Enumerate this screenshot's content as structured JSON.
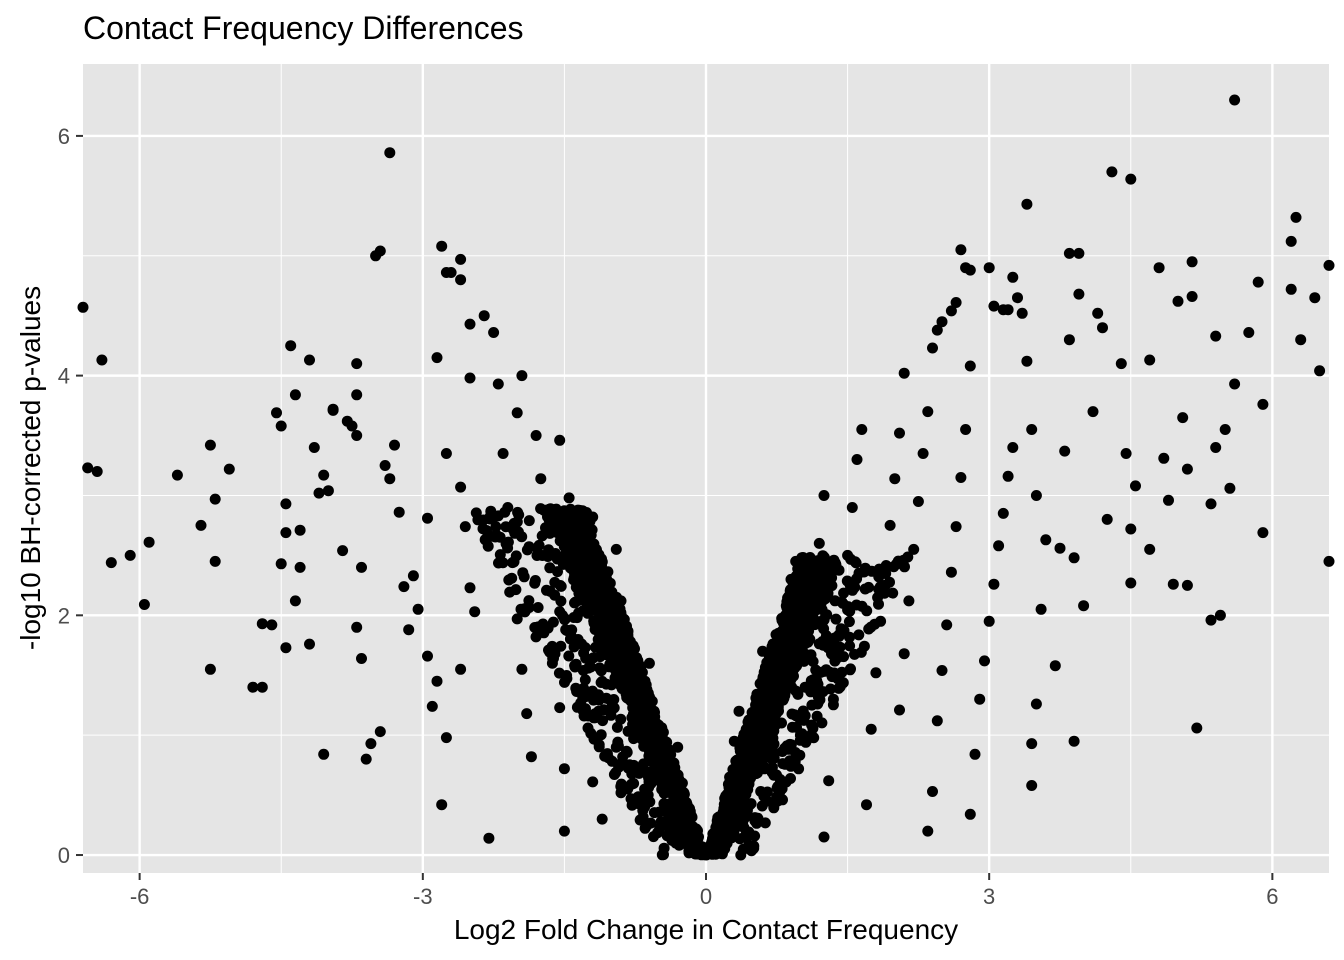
{
  "chart_data": {
    "type": "scatter",
    "title": "Contact Frequency Differences",
    "xlabel": "Log2 Fold Change in Contact Frequency",
    "ylabel": "-log10 BH-corrected p-values",
    "xlim": [
      -6.6,
      6.6
    ],
    "ylim": [
      -0.15,
      6.6
    ],
    "x_ticks": [
      -6,
      -3,
      0,
      3,
      6
    ],
    "y_ticks": [
      0,
      2,
      4,
      6
    ],
    "grid": true,
    "legend": "none",
    "colors": {
      "panel": "#e5e5e5",
      "grid": "#ffffff",
      "point": "#000000",
      "tick_text": "#4d4d4d"
    },
    "points": [
      [
        -6.6,
        4.57
      ],
      [
        -6.4,
        4.13
      ],
      [
        -6.55,
        3.23
      ],
      [
        -6.45,
        3.2
      ],
      [
        -5.6,
        3.17
      ],
      [
        -6.3,
        2.44
      ],
      [
        -6.1,
        2.5
      ],
      [
        -5.9,
        2.61
      ],
      [
        -5.95,
        2.09
      ],
      [
        -5.35,
        2.75
      ],
      [
        -5.25,
        3.42
      ],
      [
        -5.2,
        2.97
      ],
      [
        -5.05,
        3.22
      ],
      [
        -5.2,
        2.45
      ],
      [
        -5.25,
        1.55
      ],
      [
        -4.8,
        1.4
      ],
      [
        -4.7,
        1.4
      ],
      [
        -4.7,
        1.93
      ],
      [
        -4.6,
        1.92
      ],
      [
        -4.55,
        3.69
      ],
      [
        -4.5,
        3.58
      ],
      [
        -4.45,
        2.93
      ],
      [
        -4.45,
        2.69
      ],
      [
        -4.5,
        2.43
      ],
      [
        -4.4,
        4.25
      ],
      [
        -4.35,
        3.84
      ],
      [
        -4.3,
        2.71
      ],
      [
        -4.3,
        2.4
      ],
      [
        -4.35,
        2.12
      ],
      [
        -4.45,
        1.73
      ],
      [
        -4.2,
        4.13
      ],
      [
        -4.15,
        3.4
      ],
      [
        -4.1,
        3.02
      ],
      [
        -4.05,
        3.17
      ],
      [
        -4.0,
        3.04
      ],
      [
        -3.95,
        3.71
      ],
      [
        -3.95,
        3.72
      ],
      [
        -4.2,
        1.76
      ],
      [
        -3.8,
        3.62
      ],
      [
        -3.85,
        2.54
      ],
      [
        -3.7,
        4.1
      ],
      [
        -3.7,
        3.84
      ],
      [
        -3.75,
        3.58
      ],
      [
        -3.7,
        3.5
      ],
      [
        -3.65,
        2.4
      ],
      [
        -3.7,
        1.9
      ],
      [
        -3.65,
        1.64
      ],
      [
        -3.6,
        0.8
      ],
      [
        -4.05,
        0.84
      ],
      [
        -3.55,
        0.93
      ],
      [
        -3.5,
        5.0
      ],
      [
        -3.45,
        5.04
      ],
      [
        -3.35,
        5.86
      ],
      [
        -3.4,
        3.25
      ],
      [
        -3.35,
        3.14
      ],
      [
        -3.3,
        3.42
      ],
      [
        -3.25,
        2.86
      ],
      [
        -3.2,
        2.24
      ],
      [
        -3.15,
        1.88
      ],
      [
        -3.45,
        1.03
      ],
      [
        -3.1,
        2.33
      ],
      [
        -3.05,
        2.05
      ],
      [
        -2.95,
        2.81
      ],
      [
        -2.95,
        1.66
      ],
      [
        -2.9,
        1.24
      ],
      [
        -2.85,
        1.45
      ],
      [
        -2.85,
        4.15
      ],
      [
        -2.8,
        5.08
      ],
      [
        -2.75,
        4.86
      ],
      [
        -2.6,
        4.97
      ],
      [
        -2.6,
        4.8
      ],
      [
        -2.7,
        4.86
      ],
      [
        -2.75,
        3.35
      ],
      [
        -2.6,
        3.07
      ],
      [
        -2.55,
        2.74
      ],
      [
        -2.5,
        2.23
      ],
      [
        -2.45,
        2.03
      ],
      [
        -2.8,
        0.42
      ],
      [
        -2.75,
        0.98
      ],
      [
        -2.6,
        1.55
      ],
      [
        -2.5,
        4.43
      ],
      [
        -2.5,
        3.98
      ],
      [
        -2.35,
        4.5
      ],
      [
        -2.25,
        4.36
      ],
      [
        -2.2,
        3.93
      ],
      [
        -2.3,
        0.14
      ],
      [
        -2.15,
        3.35
      ],
      [
        -2.1,
        2.9
      ],
      [
        -2.05,
        2.44
      ],
      [
        -2.0,
        1.97
      ],
      [
        -1.95,
        1.55
      ],
      [
        -1.9,
        1.18
      ],
      [
        -1.85,
        0.82
      ],
      [
        -2.0,
        3.69
      ],
      [
        -1.95,
        4.0
      ],
      [
        -1.8,
        3.5
      ],
      [
        -1.75,
        3.14
      ],
      [
        -1.7,
        2.73
      ],
      [
        -1.65,
        2.2
      ],
      [
        -1.6,
        1.68
      ],
      [
        -1.55,
        1.23
      ],
      [
        -1.5,
        0.72
      ],
      [
        -1.55,
        3.46
      ],
      [
        -1.45,
        2.98
      ],
      [
        -1.4,
        2.5
      ],
      [
        -1.35,
        2.02
      ],
      [
        -1.3,
        1.54
      ],
      [
        -1.25,
        1.06
      ],
      [
        -1.2,
        0.61
      ],
      [
        -1.5,
        0.2
      ],
      [
        -1.2,
        2.82
      ],
      [
        -1.15,
        2.43
      ],
      [
        -1.1,
        2.05
      ],
      [
        -1.05,
        1.67
      ],
      [
        -1.0,
        1.28
      ],
      [
        -0.95,
        0.9
      ],
      [
        -0.9,
        0.52
      ],
      [
        -1.1,
        0.3
      ],
      [
        -0.95,
        2.55
      ],
      [
        -0.9,
        2.12
      ],
      [
        -0.85,
        1.76
      ],
      [
        -0.8,
        1.4
      ],
      [
        -0.75,
        1.05
      ],
      [
        -0.7,
        0.7
      ],
      [
        -0.65,
        0.4
      ],
      [
        -0.6,
        1.6
      ],
      [
        -0.55,
        1.2
      ],
      [
        -0.5,
        0.85
      ],
      [
        -0.45,
        0.55
      ],
      [
        -0.4,
        0.3
      ],
      [
        -0.3,
        0.9
      ],
      [
        -0.25,
        0.6
      ],
      [
        -0.2,
        0.35
      ],
      [
        -0.15,
        0.2
      ],
      [
        -0.1,
        0.1
      ],
      [
        -0.05,
        0.03
      ],
      [
        0.0,
        0.01
      ],
      [
        0.05,
        0.03
      ],
      [
        0.1,
        0.12
      ],
      [
        0.15,
        0.22
      ],
      [
        0.2,
        0.4
      ],
      [
        0.25,
        0.65
      ],
      [
        0.3,
        0.95
      ],
      [
        0.35,
        1.2
      ],
      [
        0.4,
        0.3
      ],
      [
        0.45,
        0.6
      ],
      [
        0.5,
        0.9
      ],
      [
        0.55,
        1.3
      ],
      [
        0.6,
        1.7
      ],
      [
        0.65,
        0.45
      ],
      [
        0.7,
        0.8
      ],
      [
        0.75,
        1.1
      ],
      [
        0.8,
        1.5
      ],
      [
        0.85,
        1.9
      ],
      [
        0.9,
        2.3
      ],
      [
        0.95,
        2.45
      ],
      [
        1.0,
        1.0
      ],
      [
        1.05,
        1.4
      ],
      [
        1.1,
        1.8
      ],
      [
        1.15,
        2.2
      ],
      [
        1.2,
        2.6
      ],
      [
        1.25,
        3.0
      ],
      [
        1.3,
        0.62
      ],
      [
        1.35,
        1.3
      ],
      [
        1.4,
        1.65
      ],
      [
        1.45,
        2.1
      ],
      [
        1.5,
        2.5
      ],
      [
        1.55,
        2.9
      ],
      [
        1.6,
        3.3
      ],
      [
        1.65,
        3.55
      ],
      [
        1.25,
        0.15
      ],
      [
        1.7,
        0.42
      ],
      [
        1.75,
        1.05
      ],
      [
        1.8,
        1.52
      ],
      [
        1.85,
        1.95
      ],
      [
        1.9,
        2.35
      ],
      [
        1.95,
        2.75
      ],
      [
        2.0,
        3.14
      ],
      [
        2.05,
        3.52
      ],
      [
        2.1,
        4.02
      ],
      [
        2.05,
        1.21
      ],
      [
        2.1,
        1.68
      ],
      [
        2.15,
        2.12
      ],
      [
        2.2,
        2.55
      ],
      [
        2.25,
        2.95
      ],
      [
        2.3,
        3.35
      ],
      [
        2.35,
        3.7
      ],
      [
        2.4,
        4.23
      ],
      [
        2.45,
        4.38
      ],
      [
        2.5,
        4.45
      ],
      [
        2.35,
        0.2
      ],
      [
        2.4,
        0.53
      ],
      [
        2.45,
        1.12
      ],
      [
        2.5,
        1.54
      ],
      [
        2.55,
        1.92
      ],
      [
        2.6,
        2.36
      ],
      [
        2.65,
        2.74
      ],
      [
        2.7,
        3.15
      ],
      [
        2.75,
        3.55
      ],
      [
        2.8,
        4.08
      ],
      [
        2.6,
        4.54
      ],
      [
        2.65,
        4.61
      ],
      [
        2.7,
        5.05
      ],
      [
        2.75,
        4.9
      ],
      [
        2.8,
        4.88
      ],
      [
        2.8,
        0.34
      ],
      [
        2.85,
        0.84
      ],
      [
        2.9,
        1.3
      ],
      [
        2.95,
        1.62
      ],
      [
        3.0,
        1.95
      ],
      [
        3.05,
        2.26
      ],
      [
        3.1,
        2.58
      ],
      [
        3.15,
        2.85
      ],
      [
        3.2,
        3.16
      ],
      [
        3.25,
        3.4
      ],
      [
        3.05,
        4.58
      ],
      [
        3.15,
        4.55
      ],
      [
        3.25,
        4.82
      ],
      [
        3.3,
        4.65
      ],
      [
        3.35,
        4.52
      ],
      [
        3.0,
        4.9
      ],
      [
        3.2,
        4.55
      ],
      [
        3.4,
        4.12
      ],
      [
        3.45,
        3.55
      ],
      [
        3.5,
        3.0
      ],
      [
        3.45,
        0.58
      ],
      [
        3.45,
        0.93
      ],
      [
        3.5,
        1.26
      ],
      [
        3.55,
        2.05
      ],
      [
        3.6,
        2.63
      ],
      [
        3.4,
        5.43
      ],
      [
        3.7,
        1.58
      ],
      [
        3.75,
        2.56
      ],
      [
        3.8,
        3.37
      ],
      [
        3.85,
        4.3
      ],
      [
        3.85,
        5.02
      ],
      [
        3.95,
        5.02
      ],
      [
        3.9,
        2.48
      ],
      [
        3.9,
        0.95
      ],
      [
        4.0,
        2.08
      ],
      [
        3.95,
        4.68
      ],
      [
        4.1,
        3.7
      ],
      [
        4.15,
        4.52
      ],
      [
        4.2,
        4.4
      ],
      [
        4.25,
        2.8
      ],
      [
        4.3,
        5.7
      ],
      [
        4.4,
        4.1
      ],
      [
        4.45,
        3.35
      ],
      [
        4.5,
        5.64
      ],
      [
        4.5,
        2.72
      ],
      [
        4.5,
        2.27
      ],
      [
        4.55,
        3.08
      ],
      [
        4.7,
        2.55
      ],
      [
        4.7,
        4.13
      ],
      [
        4.8,
        4.9
      ],
      [
        4.85,
        3.31
      ],
      [
        4.9,
        2.96
      ],
      [
        4.95,
        2.26
      ],
      [
        5.0,
        4.62
      ],
      [
        5.05,
        3.65
      ],
      [
        5.1,
        2.25
      ],
      [
        5.1,
        3.22
      ],
      [
        5.15,
        4.95
      ],
      [
        5.15,
        4.66
      ],
      [
        5.2,
        1.06
      ],
      [
        5.35,
        1.96
      ],
      [
        5.35,
        2.93
      ],
      [
        5.4,
        3.4
      ],
      [
        5.4,
        4.33
      ],
      [
        5.45,
        2.0
      ],
      [
        5.5,
        3.55
      ],
      [
        5.55,
        3.06
      ],
      [
        5.6,
        6.3
      ],
      [
        5.6,
        3.93
      ],
      [
        5.75,
        4.36
      ],
      [
        5.85,
        4.78
      ],
      [
        5.9,
        2.69
      ],
      [
        5.9,
        3.76
      ],
      [
        6.2,
        5.12
      ],
      [
        6.25,
        5.32
      ],
      [
        6.2,
        4.72
      ],
      [
        6.3,
        4.3
      ],
      [
        6.45,
        4.65
      ],
      [
        6.5,
        4.04
      ],
      [
        6.6,
        4.92
      ],
      [
        6.6,
        2.45
      ]
    ]
  }
}
